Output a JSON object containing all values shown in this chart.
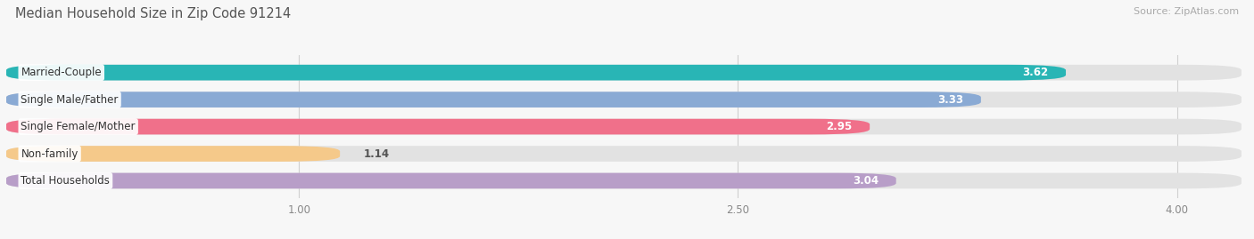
{
  "title": "Median Household Size in Zip Code 91214",
  "source": "Source: ZipAtlas.com",
  "categories": [
    "Married-Couple",
    "Single Male/Father",
    "Single Female/Mother",
    "Non-family",
    "Total Households"
  ],
  "values": [
    3.62,
    3.33,
    2.95,
    1.14,
    3.04
  ],
  "bar_colors": [
    "#29b5b5",
    "#8aaad4",
    "#f0708a",
    "#f5c98a",
    "#b89ec8"
  ],
  "background_color": "#f7f7f7",
  "bar_bg_color": "#e2e2e2",
  "xlim": [
    0,
    4.22
  ],
  "xmin": 0.0,
  "xmax": 4.22,
  "xticks": [
    1.0,
    2.5,
    4.0
  ],
  "title_fontsize": 10.5,
  "source_fontsize": 8,
  "label_fontsize": 8.5,
  "value_fontsize": 8.5,
  "bar_height": 0.58,
  "bar_gap": 1.0
}
